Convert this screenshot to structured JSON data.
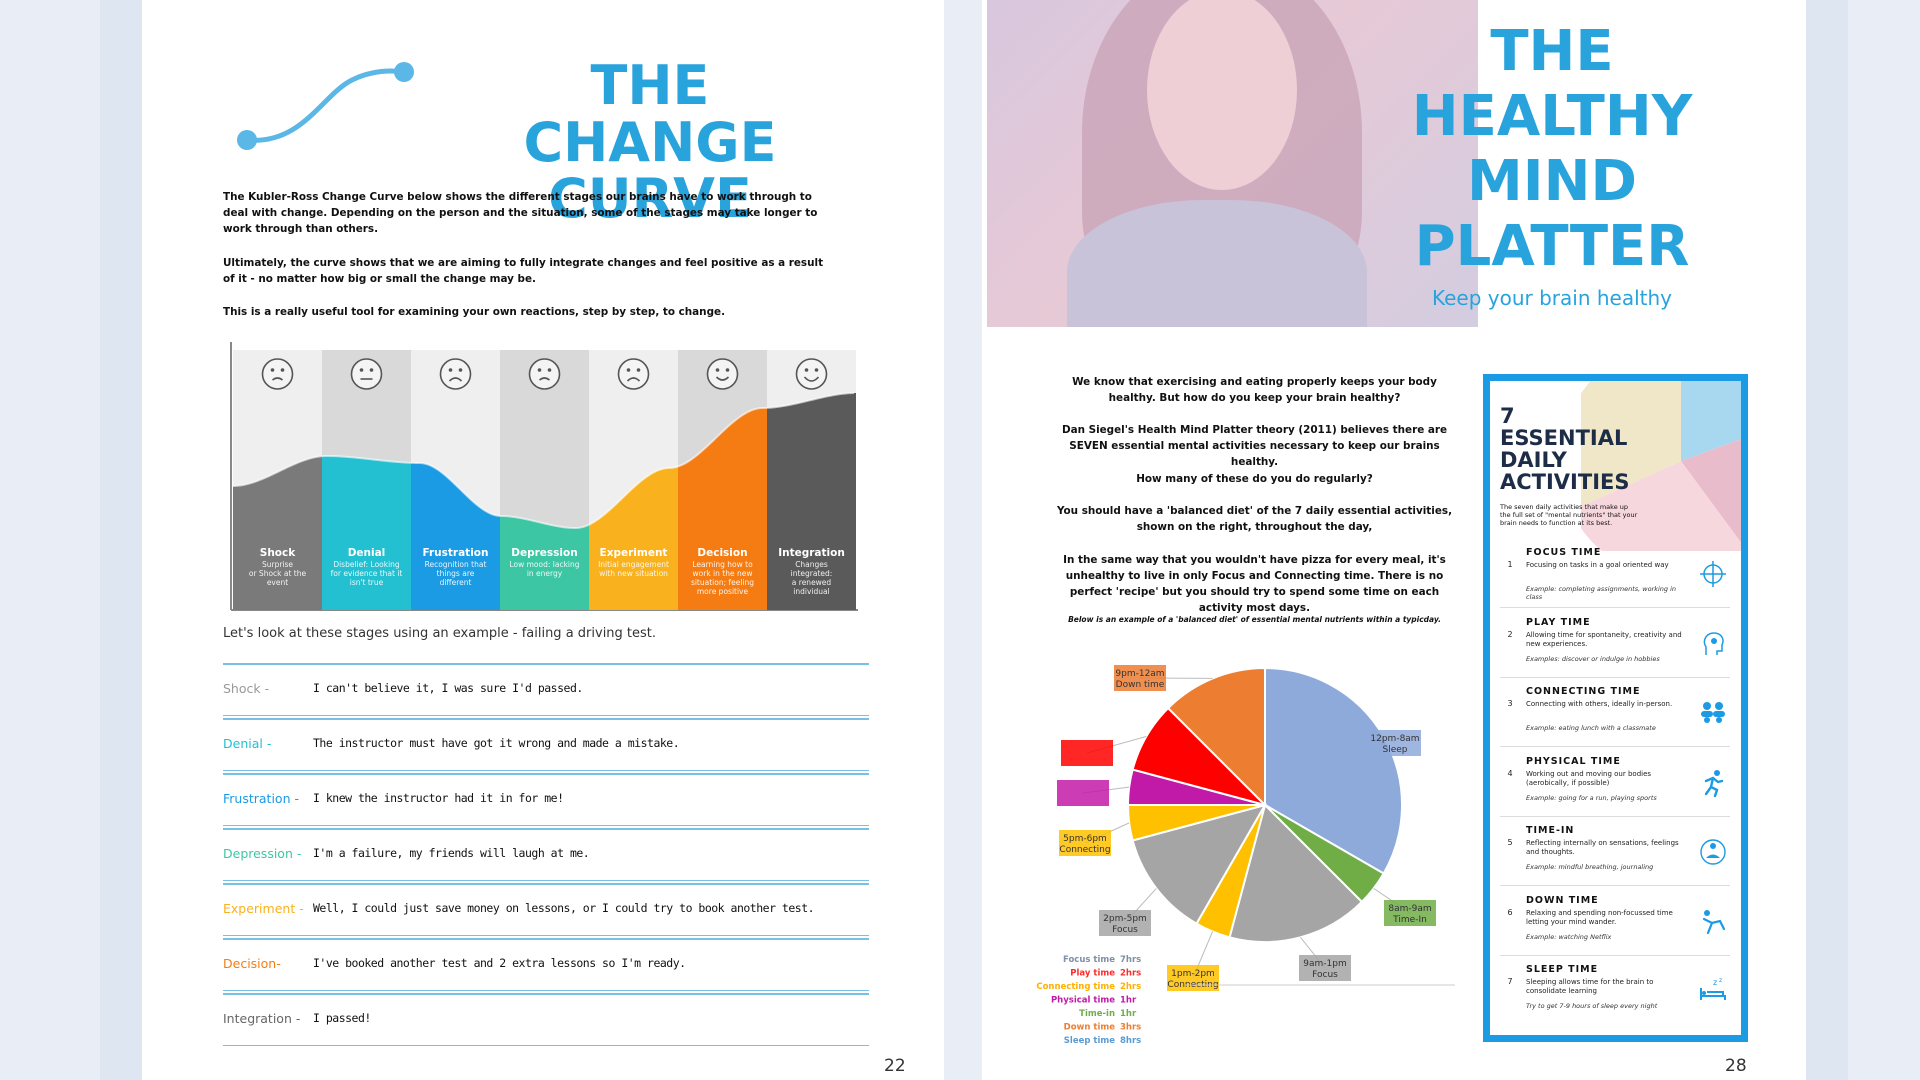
{
  "left": {
    "title_line1": "THE CHANGE",
    "title_line2": "CURVE",
    "para1": "The Kubler-Ross Change Curve below shows the different stages our brains have to work through to deal with change. Depending on the person and the situation, some of the stages may take longer to work through than others.",
    "para2": "Ultimately, the curve shows that we are aiming to fully integrate changes and feel positive as a result of it - no matter how big or small the change may be.",
    "para3": "This is a really useful tool for examining your own reactions, step by step, to change.",
    "stages": [
      {
        "name": "Shock",
        "desc1": "Surprise",
        "desc2": "or Shock at the",
        "desc3": "event",
        "desc4": "",
        "color": "#7a7a7a"
      },
      {
        "name": "Denial",
        "desc1": "Disbelief: Looking",
        "desc2": "for evidence that it",
        "desc3": "isn't true",
        "desc4": "",
        "color": "#23c0d1"
      },
      {
        "name": "Frustration",
        "desc1": "Recognition that",
        "desc2": "things are",
        "desc3": "different",
        "desc4": "",
        "color": "#1b9be3"
      },
      {
        "name": "Depression",
        "desc1": "Low mood: lacking",
        "desc2": "in energy",
        "desc3": "",
        "desc4": "",
        "color": "#3cc6a4"
      },
      {
        "name": "Experiment",
        "desc1": "Initial engagement",
        "desc2": "with new situation",
        "desc3": "",
        "desc4": "",
        "color": "#f9b11d"
      },
      {
        "name": "Decision",
        "desc1": "Learning how to",
        "desc2": "work in the new",
        "desc3": "situation; feeling",
        "desc4": "more positive",
        "color": "#f57c12"
      },
      {
        "name": "Integration",
        "desc1": "Changes",
        "desc2": "integrated:",
        "desc3": "a renewed",
        "desc4": "individual",
        "color": "#5a5a5a"
      }
    ],
    "example_intro": "Let's look at these stages using an example - failing a driving test.",
    "worksheet": [
      {
        "label": "Shock -",
        "answer": "I can't believe it, I was sure I'd passed.",
        "color": "#999999"
      },
      {
        "label": "Denial -",
        "answer": "The instructor must have got it wrong and made a mistake.",
        "color": "#23c0d1"
      },
      {
        "label": "Frustration -",
        "answer": "I knew the instructor had it in for me!",
        "color": "#1b9be3"
      },
      {
        "label": "Depression -",
        "answer": "I'm a failure, my friends will laugh at me.",
        "color": "#3cc6a4"
      },
      {
        "label": "Experiment -",
        "answer": "Well, I could just save money on lessons, or I could try to book another test.",
        "color": "#f9b11d"
      },
      {
        "label": "Decision-",
        "answer": "I've booked another test and 2 extra lessons so I'm ready.",
        "color": "#f57c12"
      },
      {
        "label": "Integration -",
        "answer": "I passed!",
        "color": "#666666"
      }
    ],
    "page_number": "22"
  },
  "right": {
    "title_line1": "THE",
    "title_line2": "HEALTHY",
    "title_line3": "MIND",
    "title_line4": "PLATTER",
    "subtitle": "Keep your brain healthy",
    "p1": "We know that exercising and eating properly keeps your body healthy. But how do you keep your brain healthy?",
    "p2": "Dan Siegel's Health Mind Platter theory (2011) believes there are SEVEN essential mental activities necessary to keep our brains healthy.",
    "p3": "How many of these do you do regularly?",
    "p4": "You should have a 'balanced diet' of the 7 daily essential activities, shown on the right, throughout the day,",
    "p5": "In the same way that you wouldn't have pizza for every meal, it's unhealthy to live in only Focus and Connecting time. There is no perfect 'recipe' but you should try to spend some time on each activity most days.",
    "p6": "Below is an example of a 'balanced diet' of essential mental nutrients within a typicday.",
    "panel_title": "7 ESSENTIAL DAILY ACTIVITIES",
    "panel_intro": "The seven daily activities that make up the full set of \"mental nutrients\" that your brain needs to function at its best.",
    "activities": [
      {
        "num": "1",
        "name": "FOCUS TIME",
        "desc": "Focusing on tasks in a goal oriented way",
        "example": "Example: completing assignments, working in class",
        "icon": "crosshair-icon"
      },
      {
        "num": "2",
        "name": "PLAY TIME",
        "desc": "Allowing time for spontaneity, creativity and new experiences.",
        "example": "Examples: discover or indulge in hobbies",
        "icon": "creative-head-icon"
      },
      {
        "num": "3",
        "name": "CONNECTING TIME",
        "desc": "Connecting with others, ideally in-person.",
        "example": "Example: eating lunch with a classmate",
        "icon": "people-icon"
      },
      {
        "num": "4",
        "name": "PHYSICAL TIME",
        "desc": "Working out and moving our bodies (aerobically, if possible)",
        "example": "Example: going for a run, playing sports",
        "icon": "runner-icon"
      },
      {
        "num": "5",
        "name": "TIME-IN",
        "desc": "Reflecting internally on sensations, feelings and thoughts.",
        "example": "Example: mindful breathing, journaling",
        "icon": "meditation-icon"
      },
      {
        "num": "6",
        "name": "DOWN TIME",
        "desc": "Relaxing and spending non-focussed time letting your mind wander.",
        "example": "Example: watching Netflix",
        "icon": "relax-icon"
      },
      {
        "num": "7",
        "name": "SLEEP TIME",
        "desc": "Sleeping allows time for the brain to consolidate learning",
        "example": "Try to get 7-9 hours of sleep every night",
        "icon": "bed-icon"
      }
    ],
    "page_number": "28"
  },
  "chart_data": {
    "type": "pie",
    "slices": [
      {
        "label": "12pm-8am",
        "sub": "Sleep",
        "hours": 8,
        "color": "#8eaadb"
      },
      {
        "label": "8am-9am",
        "sub": "Time-In",
        "hours": 1,
        "color": "#70ad47"
      },
      {
        "label": "9am-1pm",
        "sub": "Focus",
        "hours": 4,
        "color": "#a5a5a5"
      },
      {
        "label": "1pm-2pm",
        "sub": "Connecting",
        "hours": 1,
        "color": "#ffc000"
      },
      {
        "label": "2pm-5pm",
        "sub": "Focus",
        "hours": 3,
        "color": "#a5a5a5"
      },
      {
        "label": "5pm-6pm",
        "sub": "Connecting",
        "hours": 1,
        "color": "#ffc000"
      },
      {
        "label": "",
        "sub": "",
        "hours": 1,
        "color": "#c21aa8"
      },
      {
        "label": "",
        "sub": "",
        "hours": 2,
        "color": "#ff0000"
      },
      {
        "label": "9pm-12am",
        "sub": "Down time",
        "hours": 3,
        "color": "#ed7d31"
      }
    ],
    "legend": [
      {
        "name": "Focus time",
        "value": "7hrs",
        "color": "#7f8fa6"
      },
      {
        "name": "Play time",
        "value": "2hrs",
        "color": "#ff2a2a"
      },
      {
        "name": "Connecting time",
        "value": "2hrs",
        "color": "#ffb000"
      },
      {
        "name": "Physical time",
        "value": "1hr",
        "color": "#c21aa8"
      },
      {
        "name": "Time-in",
        "value": "1hr",
        "color": "#70ad47"
      },
      {
        "name": "Down time",
        "value": "3hrs",
        "color": "#ed7d31"
      },
      {
        "name": "Sleep time",
        "value": "8hrs",
        "color": "#5b9bd5"
      }
    ]
  }
}
